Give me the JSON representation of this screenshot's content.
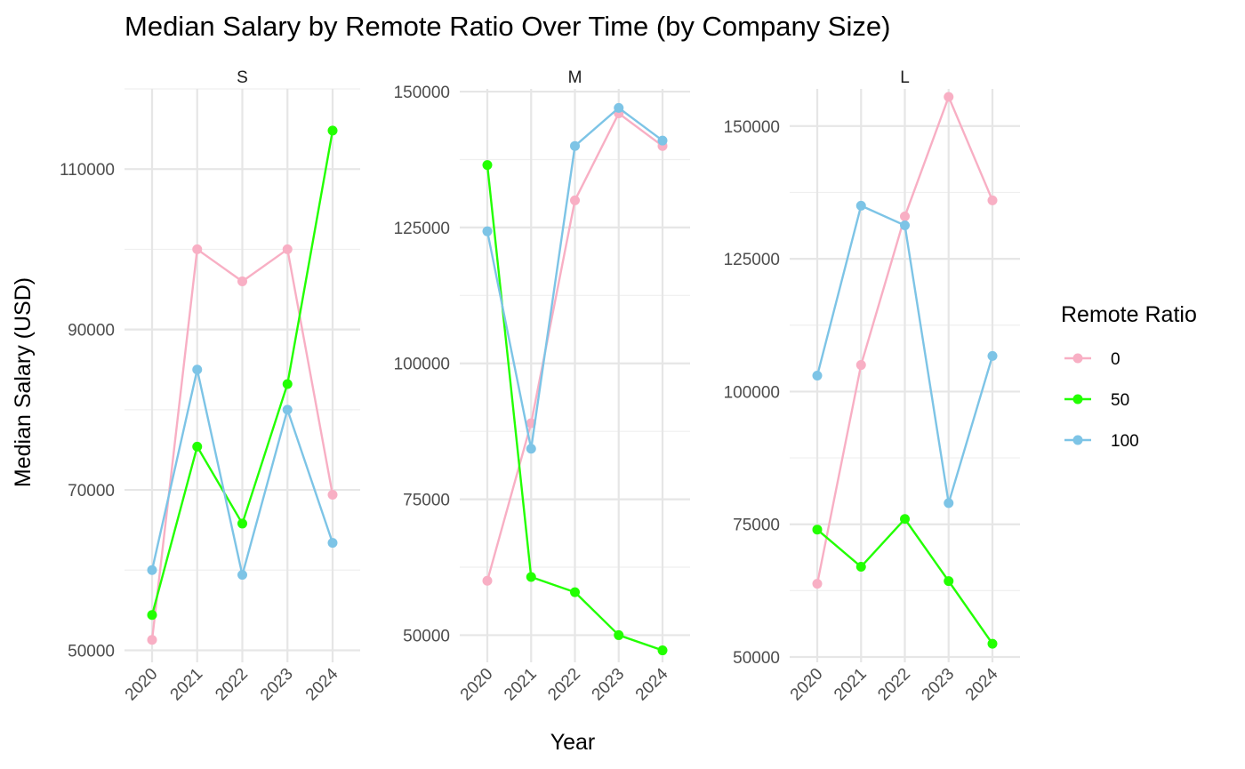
{
  "chart_data": {
    "type": "line",
    "title": "Median Salary by Remote Ratio Over Time (by Company Size)",
    "xlabel": "Year",
    "ylabel": "Median Salary (USD)",
    "legend": {
      "title": "Remote Ratio",
      "position": "right",
      "entries": [
        {
          "label": "0",
          "color": "#F8AFC4"
        },
        {
          "label": "50",
          "color": "#22FF00"
        },
        {
          "label": "100",
          "color": "#7DC4E6"
        }
      ]
    },
    "x": [
      2020,
      2021,
      2022,
      2023,
      2024
    ],
    "x_tick_labels": [
      "2020",
      "2021",
      "2022",
      "2023",
      "2024"
    ],
    "grid": true,
    "panels": [
      {
        "label": "S",
        "ylim": [
          48500,
          120000
        ],
        "y_ticks": [
          50000,
          70000,
          90000,
          110000
        ],
        "y_tick_labels": [
          "50000",
          "70000",
          "90000",
          "110000"
        ],
        "series": [
          {
            "name": "0",
            "values": [
              51300,
              100000,
              96000,
              100000,
              69400
            ]
          },
          {
            "name": "50",
            "values": [
              54400,
              75400,
              65800,
              83200,
              114800
            ]
          },
          {
            "name": "100",
            "values": [
              60000,
              85000,
              59400,
              80000,
              63400
            ]
          }
        ]
      },
      {
        "label": "M",
        "ylim": [
          45000,
          150500
        ],
        "y_ticks": [
          50000,
          75000,
          100000,
          125000,
          150000
        ],
        "y_tick_labels": [
          "50000",
          "75000",
          "100000",
          "125000",
          "150000"
        ],
        "series": [
          {
            "name": "0",
            "values": [
              60000,
              89000,
              130000,
              146000,
              140000
            ]
          },
          {
            "name": "50",
            "values": [
              136500,
              60700,
              57900,
              50000,
              47200
            ]
          },
          {
            "name": "100",
            "values": [
              124300,
              84300,
              140000,
              147000,
              141000
            ]
          }
        ]
      },
      {
        "label": "L",
        "ylim": [
          49000,
          157000
        ],
        "y_ticks": [
          50000,
          75000,
          100000,
          125000,
          150000
        ],
        "y_tick_labels": [
          "50000",
          "75000",
          "100000",
          "125000",
          "150000"
        ],
        "series": [
          {
            "name": "0",
            "values": [
              63800,
              105000,
              133000,
              155500,
              136000
            ]
          },
          {
            "name": "50",
            "values": [
              74000,
              67000,
              76000,
              64300,
              52500
            ]
          },
          {
            "name": "100",
            "values": [
              103000,
              135000,
              131300,
              79000,
              106700
            ]
          }
        ]
      }
    ]
  }
}
